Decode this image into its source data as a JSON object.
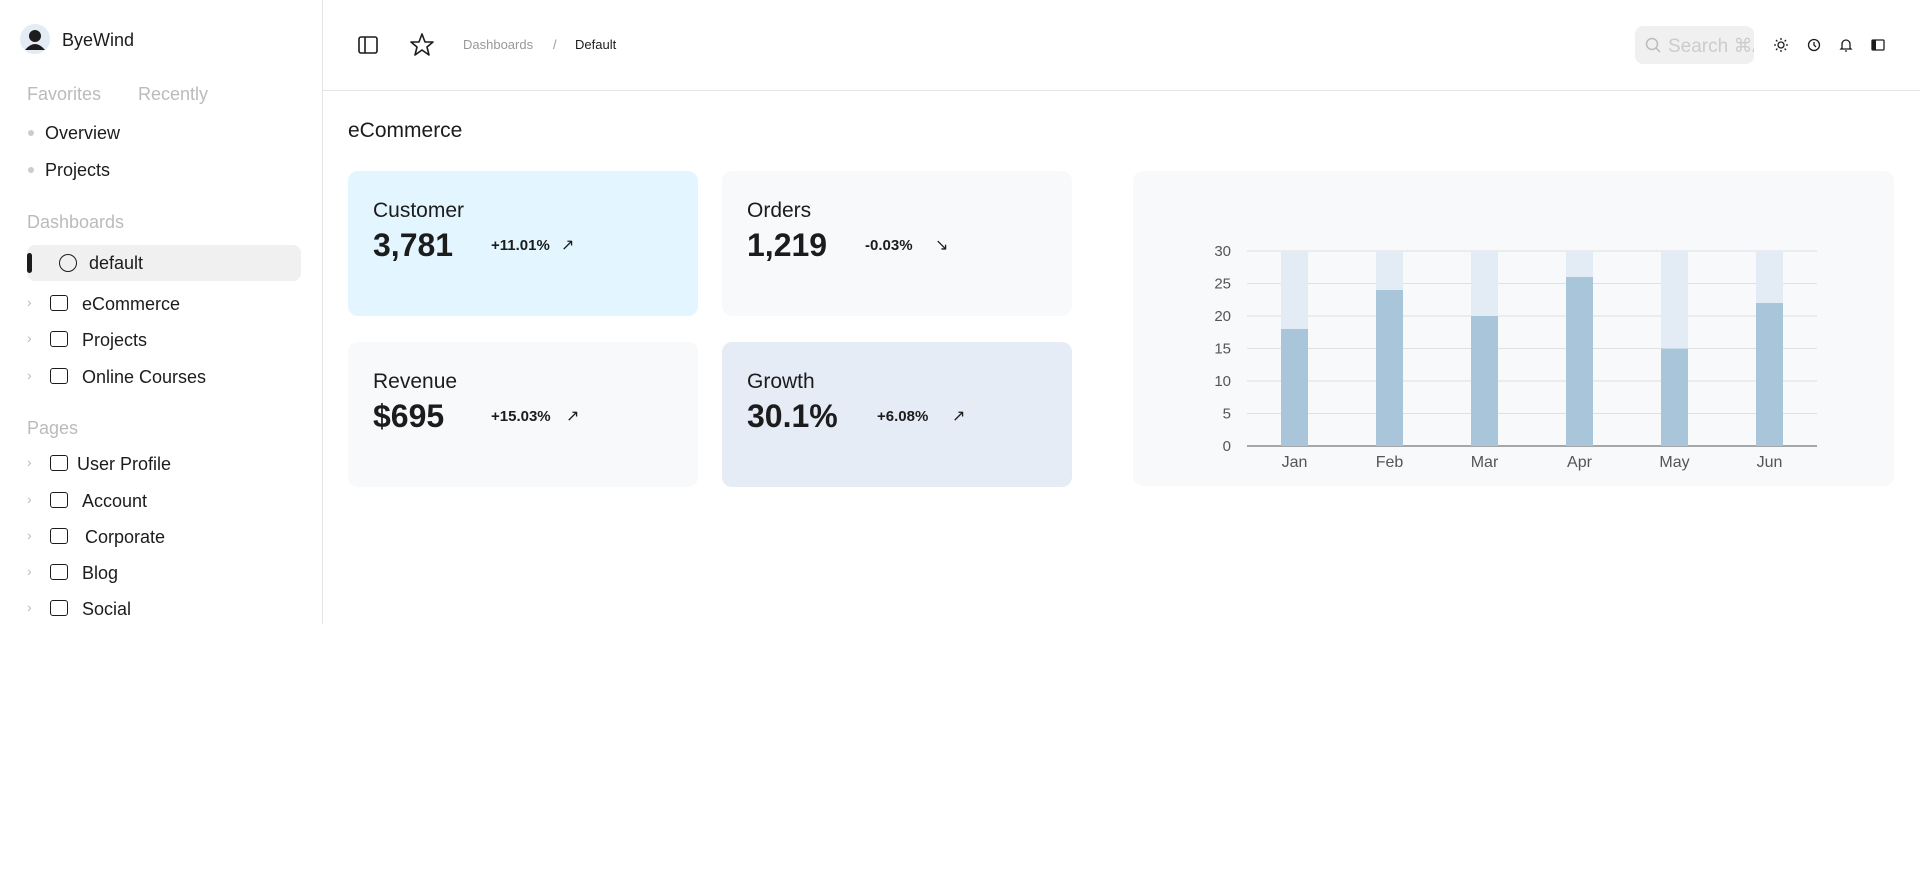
{
  "sidebar": {
    "user": "ByeWind",
    "tabs": [
      "Favorites",
      "Recently"
    ],
    "favorites": [
      "Overview",
      "Projects"
    ],
    "dashboards_heading": "Dashboards",
    "dashboards": [
      "default",
      "eCommerce",
      "Projects",
      "Online Courses"
    ],
    "pages_heading": "Pages",
    "pages": [
      "User Profile",
      "Account",
      "Corporate",
      "Blog",
      "Social"
    ]
  },
  "header": {
    "breadcrumbs": [
      "Dashboards",
      "/",
      "Default"
    ],
    "search_placeholder": "Search ⌘/"
  },
  "page_title": "eCommerce",
  "cards": [
    {
      "label": "Customer",
      "value": "3,781",
      "change": "+11.01%"
    },
    {
      "label": "Orders",
      "value": "1,219",
      "change": "-0.03%"
    },
    {
      "label": "Revenue",
      "value": "$695",
      "change": "+15.03%"
    },
    {
      "label": "Growth",
      "value": "30.1%",
      "change": "+6.08%"
    }
  ],
  "chart_data": {
    "type": "bar",
    "stacked": true,
    "categories": [
      "Jan",
      "Feb",
      "Mar",
      "Apr",
      "May",
      "Jun"
    ],
    "series": [
      {
        "color": "#a8c5da",
        "values": [
          18,
          24,
          20,
          26,
          15,
          22
        ]
      },
      {
        "color": "#e3ebf4",
        "values": [
          12,
          6,
          10,
          4,
          15,
          8
        ]
      }
    ],
    "ylim": [
      0,
      30
    ],
    "yticks": [
      0,
      5,
      10,
      15,
      20,
      25,
      30
    ],
    "grid": true
  }
}
